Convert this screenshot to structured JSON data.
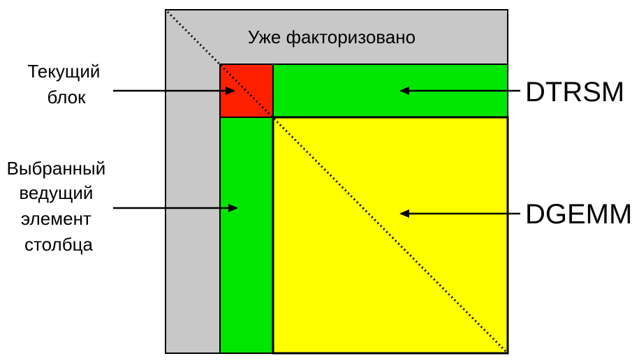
{
  "labels": {
    "factorized": "Уже факторизовано",
    "current_block": [
      "Текущий",
      "блок"
    ],
    "pivot_column": [
      "Выбранный",
      "ведущий",
      "элемент",
      "столбца"
    ],
    "dtrsm": "DTRSM",
    "dgemm": "DGEMM"
  },
  "colors": {
    "factorized": "#c8c8c8",
    "current_block": "#ff2000",
    "green_panel": "#00e600",
    "trailing_matrix": "#ffff00",
    "border": "#000000"
  }
}
